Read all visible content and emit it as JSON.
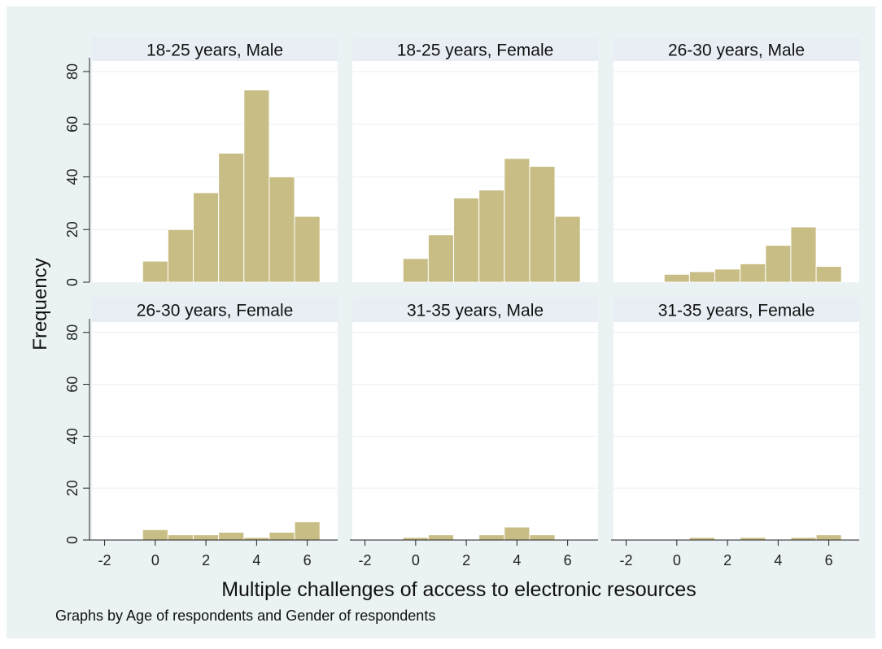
{
  "chart_data": {
    "type": "bar",
    "subtype": "histogram-facets",
    "xlabel": "Multiple challenges of access to electronic resources",
    "ylabel": "Frequency",
    "note": "Graphs by Age of respondents and Gender of respondents",
    "xlim": [
      -2.5,
      7.2
    ],
    "ylim": [
      0,
      84
    ],
    "xticks": [
      "-2",
      "0",
      "2",
      "4",
      "6"
    ],
    "yticks": [
      "0",
      "20",
      "40",
      "60",
      "80"
    ],
    "grid": true,
    "bin_edges": [
      -0.5,
      0.5,
      1.5,
      2.5,
      3.5,
      4.5,
      5.5,
      6.5
    ],
    "colors": {
      "bar": "#c8bd84",
      "bar_stroke": "#ffffff",
      "panel_title_bg": "#e8eef4",
      "outer_bg": "#eaf2f3",
      "grid": "#eaf0f3"
    },
    "panels": [
      {
        "title": "18-25 years, Male",
        "values": [
          8,
          20,
          34,
          49,
          73,
          40,
          25
        ]
      },
      {
        "title": "18-25 years, Female",
        "values": [
          9,
          18,
          32,
          35,
          47,
          44,
          25
        ]
      },
      {
        "title": "26-30 years, Male",
        "values": [
          3,
          4,
          5,
          7,
          14,
          21,
          6
        ]
      },
      {
        "title": "26-30 years, Female",
        "values": [
          4,
          2,
          2,
          3,
          1,
          3,
          7
        ]
      },
      {
        "title": "31-35 years, Male",
        "values": [
          1,
          2,
          0,
          2,
          5,
          2,
          0
        ]
      },
      {
        "title": "31-35 years, Female",
        "values": [
          0,
          1,
          0,
          1,
          0,
          1,
          2
        ]
      }
    ]
  }
}
